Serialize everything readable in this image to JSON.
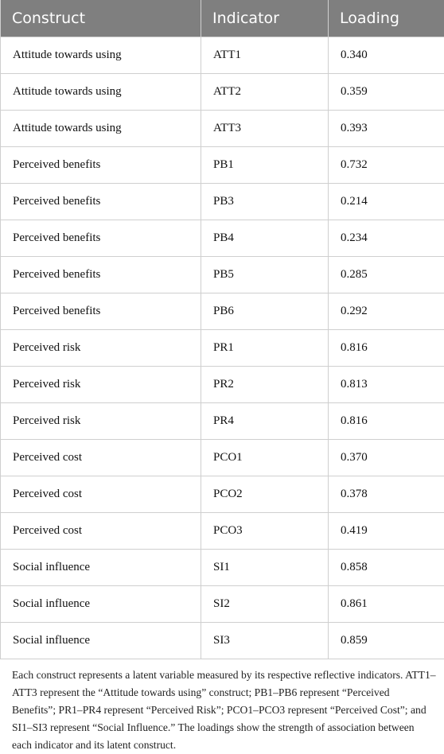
{
  "table": {
    "header": [
      "Construct",
      "Indicator",
      "Loading"
    ],
    "rows": [
      [
        "Attitude towards using",
        "ATT1",
        "0.340"
      ],
      [
        "Attitude towards using",
        "ATT2",
        "0.359"
      ],
      [
        "Attitude towards using",
        "ATT3",
        "0.393"
      ],
      [
        "Perceived benefits",
        "PB1",
        "0.732"
      ],
      [
        "Perceived benefits",
        "PB3",
        "0.214"
      ],
      [
        "Perceived benefits",
        "PB4",
        "0.234"
      ],
      [
        "Perceived benefits",
        "PB5",
        "0.285"
      ],
      [
        "Perceived benefits",
        "PB6",
        "0.292"
      ],
      [
        "Perceived risk",
        "PR1",
        "0.816"
      ],
      [
        "Perceived risk",
        "PR2",
        "0.813"
      ],
      [
        "Perceived risk",
        "PR4",
        "0.816"
      ],
      [
        "Perceived cost",
        "PCO1",
        "0.370"
      ],
      [
        "Perceived cost",
        "PCO2",
        "0.378"
      ],
      [
        "Perceived cost",
        "PCO3",
        "0.419"
      ],
      [
        "Social influence",
        "SI1",
        "0.858"
      ],
      [
        "Social influence",
        "SI2",
        "0.861"
      ],
      [
        "Social influence",
        "SI3",
        "0.859"
      ]
    ]
  },
  "footnote": "Each construct represents a latent variable measured by its respective reflective indicators. ATT1–ATT3 represent the “Attitude towards using” construct; PB1–PB6 represent “Perceived Benefits”; PR1–PR4 represent “Perceived Risk”; PCO1–PCO3 represent “Perceived Cost”; and SI1–SI3 represent “Social Influence.” The loadings show the strength of association between each indicator and its latent construct."
}
